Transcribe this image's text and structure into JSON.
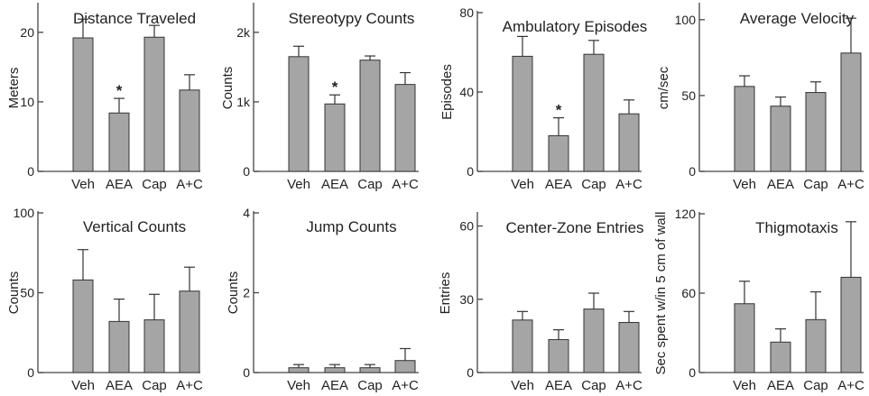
{
  "chart_data": [
    {
      "type": "bar",
      "title": "Distance Traveled",
      "ylabel": "Meters",
      "categories": [
        "Veh",
        "AEA",
        "Cap",
        "A+C"
      ],
      "values": [
        19.2,
        8.4,
        19.3,
        11.7
      ],
      "errors": [
        2.7,
        2.1,
        1.7,
        2.2
      ],
      "ylim": [
        0,
        24
      ],
      "yticks": [
        0,
        10,
        20
      ],
      "ytick_labels": [
        "0",
        "10",
        "20"
      ],
      "significance": [
        "",
        "*",
        "",
        ""
      ]
    },
    {
      "type": "bar",
      "title": "Stereotypy Counts",
      "ylabel": "Counts",
      "categories": [
        "Veh",
        "AEA",
        "Cap",
        "A+C"
      ],
      "values": [
        1650,
        970,
        1600,
        1250
      ],
      "errors": [
        150,
        130,
        60,
        170
      ],
      "ylim": [
        0,
        2400
      ],
      "yticks": [
        0,
        1000,
        2000
      ],
      "ytick_labels": [
        "0",
        "1k",
        "2k"
      ],
      "significance": [
        "",
        "*",
        "",
        ""
      ]
    },
    {
      "type": "bar",
      "title": "Ambulatory Episodes",
      "ylabel": "Episodes",
      "categories": [
        "Veh",
        "AEA",
        "Cap",
        "A+C"
      ],
      "values": [
        58,
        18,
        59,
        29
      ],
      "errors": [
        10,
        9,
        7,
        7
      ],
      "ylim": [
        0,
        80
      ],
      "yticks": [
        0,
        40,
        80
      ],
      "ytick_labels": [
        "0",
        "40",
        "80"
      ],
      "significance": [
        "",
        "*",
        "",
        ""
      ]
    },
    {
      "type": "bar",
      "title": "Average Velocity",
      "ylabel": "cm/sec",
      "categories": [
        "Veh",
        "AEA",
        "Cap",
        "A+C"
      ],
      "values": [
        56,
        43,
        52,
        78
      ],
      "errors": [
        7,
        6,
        7,
        23
      ],
      "ylim": [
        0,
        110
      ],
      "yticks": [
        0,
        50,
        100
      ],
      "ytick_labels": [
        "0",
        "50",
        "100"
      ],
      "significance": [
        "",
        "",
        "",
        ""
      ]
    },
    {
      "type": "bar",
      "title": "Vertical Counts",
      "ylabel": "Counts",
      "categories": [
        "Veh",
        "AEA",
        "Cap",
        "A+C"
      ],
      "values": [
        58,
        32,
        33,
        51
      ],
      "errors": [
        19,
        14,
        16,
        15
      ],
      "ylim": [
        0,
        100
      ],
      "yticks": [
        0,
        50,
        100
      ],
      "ytick_labels": [
        "0",
        "50",
        "100"
      ],
      "significance": [
        "",
        "",
        "",
        ""
      ]
    },
    {
      "type": "bar",
      "title": "Jump Counts",
      "ylabel": "Counts",
      "categories": [
        "Veh",
        "AEA",
        "Cap",
        "A+C"
      ],
      "values": [
        0.12,
        0.12,
        0.12,
        0.3
      ],
      "errors": [
        0.08,
        0.08,
        0.08,
        0.3
      ],
      "ylim": [
        0,
        4
      ],
      "yticks": [
        0,
        2,
        4
      ],
      "ytick_labels": [
        "0",
        "2",
        "4"
      ],
      "significance": [
        "",
        "",
        "",
        ""
      ]
    },
    {
      "type": "bar",
      "title": "Center-Zone Entries",
      "ylabel": "Entries",
      "categories": [
        "Veh",
        "AEA",
        "Cap",
        "A+C"
      ],
      "values": [
        21.5,
        13.5,
        26,
        20.5
      ],
      "errors": [
        3.5,
        4,
        6.5,
        4.5
      ],
      "ylim": [
        0,
        65
      ],
      "yticks": [
        0,
        30,
        60
      ],
      "ytick_labels": [
        "0",
        "30",
        "60"
      ],
      "significance": [
        "",
        "",
        "",
        ""
      ]
    },
    {
      "type": "bar",
      "title": "Thigmotaxis",
      "ylabel": "Sec spent w/in 5 cm of wall",
      "categories": [
        "Veh",
        "AEA",
        "Cap",
        "A+C"
      ],
      "values": [
        52,
        23,
        40,
        72
      ],
      "errors": [
        17,
        10,
        21,
        42
      ],
      "ylim": [
        0,
        120
      ],
      "yticks": [
        0,
        60,
        120
      ],
      "ytick_labels": [
        "0",
        "60",
        "120"
      ],
      "significance": [
        "",
        "",
        "",
        ""
      ]
    }
  ]
}
